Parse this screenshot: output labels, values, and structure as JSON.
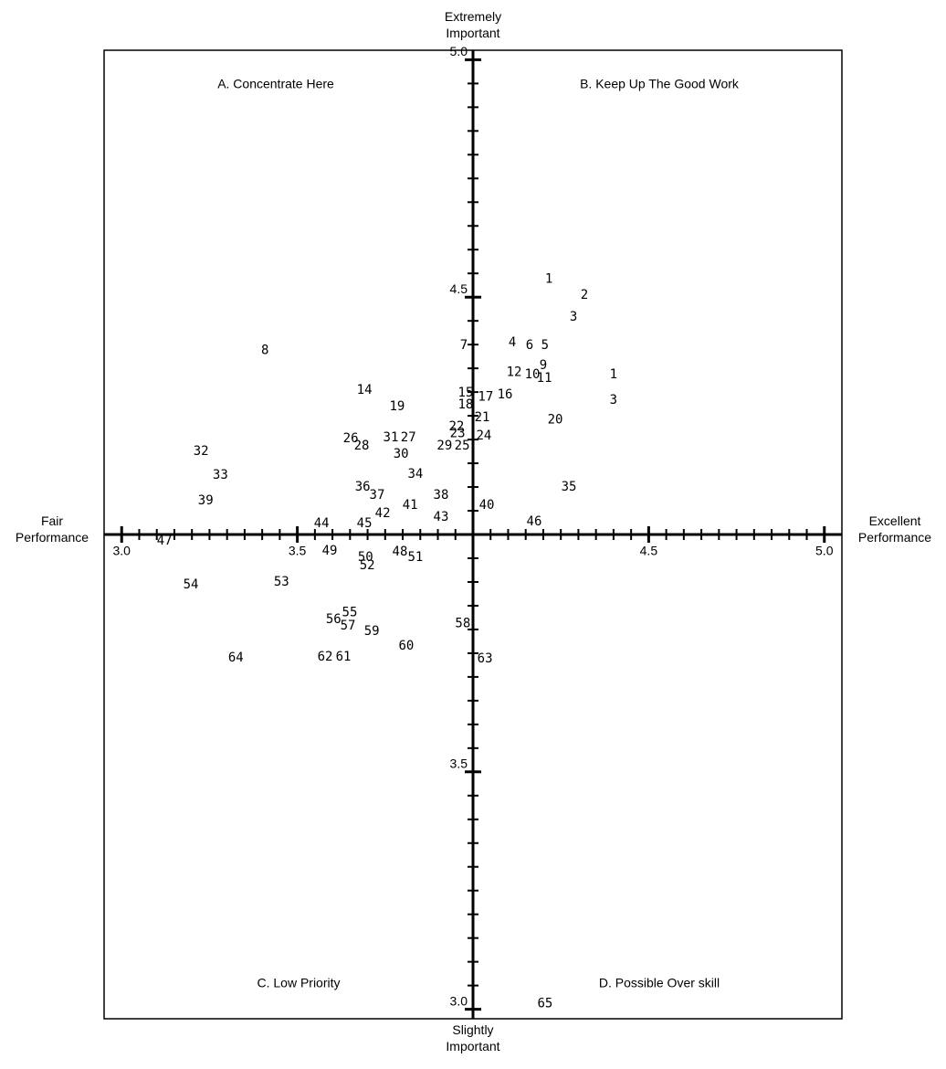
{
  "chart_data": {
    "type": "scatter",
    "x_axis_low_label": "Fair Performance",
    "x_axis_high_label": "Excellent Performance",
    "y_axis_high_label": "Extremely Important",
    "y_axis_low_label": "Slightly Important",
    "quadrants": [
      "A. Concentrate Here",
      "B. Keep Up The Good Work",
      "C. Low Priority",
      "D. Possible Over skill"
    ],
    "xlim": [
      2.95,
      5.05
    ],
    "ylim": [
      2.98,
      5.02
    ],
    "xticks": [
      {
        "value": 3,
        "label": "3.0"
      },
      {
        "value": 3.5,
        "label": "3.5"
      },
      {
        "value": 4.5,
        "label": "4.5"
      },
      {
        "value": 5,
        "label": "5.0"
      }
    ],
    "yticks": [
      {
        "value": 3,
        "label": "3.0"
      },
      {
        "value": 3.5,
        "label": "3.5"
      },
      {
        "value": 4.5,
        "label": "4.5"
      },
      {
        "value": 5,
        "label": "5.0"
      }
    ],
    "xminorticks": [
      3.05,
      3.1,
      3.15,
      3.2,
      3.25,
      3.3,
      3.35,
      3.4,
      3.45,
      3.55,
      3.6,
      3.65,
      3.7,
      3.75,
      3.8,
      3.85,
      3.9,
      3.95,
      4.05,
      4.1,
      4.15,
      4.2,
      4.25,
      4.3,
      4.35,
      4.4,
      4.45,
      4.55,
      4.6,
      4.65,
      4.7,
      4.75,
      4.8,
      4.85,
      4.9,
      4.95
    ],
    "yminorticks": [
      3.05,
      3.1,
      3.15,
      3.2,
      3.25,
      3.3,
      3.35,
      3.4,
      3.45,
      3.55,
      3.6,
      3.65,
      3.7,
      3.75,
      3.8,
      3.85,
      3.9,
      3.95,
      4.05,
      4.1,
      4.15,
      4.2,
      4.25,
      4.3,
      4.35,
      4.4,
      4.45,
      4.55,
      4.6,
      4.65,
      4.7,
      4.75,
      4.8,
      4.85,
      4.9,
      4.95
    ],
    "color": "#000000",
    "labels": [
      "1",
      "2",
      "3",
      "7",
      "4",
      "6",
      "5",
      "8",
      "12",
      "10",
      "9",
      "11",
      "1",
      "3",
      "14",
      "15",
      "17",
      "16",
      "18",
      "19",
      "21",
      "20",
      "22",
      "23",
      "24",
      "25",
      "29",
      "26",
      "28",
      "31",
      "27",
      "30",
      "32",
      "33",
      "34",
      "35",
      "36",
      "37",
      "38",
      "39",
      "40",
      "41",
      "42",
      "43",
      "44",
      "45",
      "46",
      "47",
      "49",
      "48",
      "51",
      "50",
      "52",
      "53",
      "54",
      "56",
      "55",
      "57",
      "59",
      "58",
      "60",
      "62",
      "61",
      "64",
      "63",
      "65"
    ],
    "x": [
      4.216,
      4.317,
      4.286,
      3.974,
      4.112,
      4.161,
      4.205,
      3.408,
      4.117,
      4.169,
      4.2,
      4.203,
      4.4,
      4.4,
      3.691,
      3.979,
      4.036,
      4.091,
      3.979,
      3.784,
      4.026,
      4.234,
      3.953,
      3.956,
      4.031,
      3.969,
      3.919,
      3.652,
      3.683,
      3.766,
      3.816,
      3.795,
      3.226,
      3.281,
      3.836,
      4.273,
      3.686,
      3.727,
      3.909,
      3.239,
      4.039,
      3.821,
      3.743,
      3.909,
      3.569,
      3.691,
      4.174,
      3.122,
      3.592,
      3.792,
      3.836,
      3.694,
      3.699,
      3.455,
      3.197,
      3.603,
      3.649,
      3.644,
      3.712,
      3.971,
      3.81,
      3.579,
      3.631,
      3.325,
      4.034,
      4.205
    ],
    "values": [
      4.538,
      4.504,
      4.458,
      4.398,
      4.404,
      4.398,
      4.398,
      4.388,
      4.342,
      4.337,
      4.356,
      4.329,
      4.337,
      4.283,
      4.304,
      4.298,
      4.29,
      4.294,
      4.273,
      4.269,
      4.246,
      4.242,
      4.227,
      4.213,
      4.208,
      4.187,
      4.187,
      4.202,
      4.187,
      4.204,
      4.204,
      4.169,
      4.175,
      4.125,
      4.127,
      4.1,
      4.1,
      4.083,
      4.083,
      4.071,
      4.062,
      4.062,
      4.044,
      4.037,
      4.023,
      4.023,
      4.027,
      3.987,
      3.965,
      3.963,
      3.952,
      3.952,
      3.935,
      3.9,
      3.894,
      3.821,
      3.835,
      3.808,
      3.796,
      3.812,
      3.765,
      3.742,
      3.742,
      3.74,
      3.738,
      3.012
    ]
  }
}
